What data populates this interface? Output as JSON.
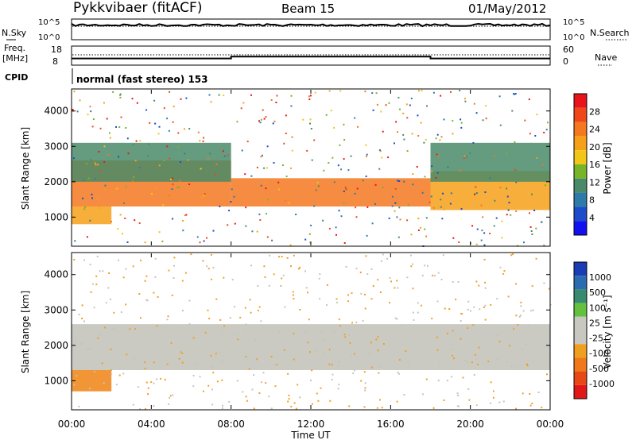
{
  "header": {
    "station": "Pykkvibaer (fitACF)",
    "beam": "Beam 15",
    "date": "01/May/2012"
  },
  "noise_panel": {
    "left_label": "N.Sky",
    "right_label": "N.Search",
    "left_ticks": [
      "10^5",
      "10^0"
    ],
    "right_ticks": [
      "10^5",
      "10^0"
    ]
  },
  "freq_panel": {
    "left_label_line1": "Freq.",
    "left_label_line2": "[MHz]",
    "right_label": "Nave",
    "left_ticks": [
      "18",
      "8"
    ],
    "right_ticks": [
      "60",
      "0"
    ],
    "cpid_label": "CPID",
    "cpid_text": "normal (fast stereo) 153"
  },
  "colorbars": {
    "power": {
      "label": "Power [dB]",
      "ticks": [
        "28",
        "24",
        "20",
        "16",
        "12",
        "8",
        "4"
      ],
      "colors": [
        "#e8141a",
        "#f0461c",
        "#f47820",
        "#f6a018",
        "#f2c618",
        "#78b428",
        "#4a8a68",
        "#2e7aa8",
        "#1c4cc8",
        "#1010f0"
      ]
    },
    "velocity": {
      "label": "Velocity [m s⁻¹]",
      "ticks": [
        "1000",
        "500",
        "100",
        "25",
        "-25",
        "-100",
        "-500",
        "-1000"
      ],
      "colors": [
        "#1a3cb4",
        "#2a6cb0",
        "#3a8a70",
        "#66c040",
        "#c8c8c0",
        "#c8c8c0",
        "#f0a020",
        "#f07818",
        "#e84818",
        "#e01818"
      ]
    }
  },
  "chart_data": [
    {
      "type": "heatmap",
      "title": "Power",
      "ylabel": "Slant Range [km]",
      "ylim": [
        200,
        4600
      ],
      "yticks": [
        "4000",
        "3000",
        "2000",
        "1000"
      ],
      "colorbar_label": "Power [dB]",
      "colorbar_range": [
        0,
        32
      ],
      "layers": [
        {
          "band": "main scatter",
          "start_hour": 0,
          "end_hour": 8,
          "range_km": [
            1300,
            2600
          ],
          "power_db": 24
        },
        {
          "band": "main scatter",
          "start_hour": 8,
          "end_hour": 18,
          "range_km": [
            1300,
            2100
          ],
          "power_db": 26
        },
        {
          "band": "main scatter",
          "start_hour": 18,
          "end_hour": 24,
          "range_km": [
            1200,
            2300
          ],
          "power_db": 22
        },
        {
          "band": "upper scatter",
          "start_hour": 0,
          "end_hour": 8,
          "range_km": [
            2000,
            3100
          ],
          "power_db": 10
        },
        {
          "band": "upper scatter",
          "start_hour": 18,
          "end_hour": 24,
          "range_km": [
            2000,
            3100
          ],
          "power_db": 12
        },
        {
          "band": "near range",
          "start_hour": 0,
          "end_hour": 2,
          "range_km": [
            800,
            1300
          ],
          "power_db": 22
        }
      ]
    },
    {
      "type": "heatmap",
      "title": "Velocity",
      "ylabel": "Slant Range [km]",
      "ylim": [
        200,
        4600
      ],
      "yticks": [
        "4000",
        "3000",
        "2000",
        "1000"
      ],
      "xlabel": "Time UT",
      "xticks": [
        "00:00",
        "04:00",
        "08:00",
        "12:00",
        "16:00",
        "20:00",
        "00:00"
      ],
      "colorbar_label": "Velocity [m s⁻¹]",
      "colorbar_range": [
        -1000,
        1000
      ],
      "layers": [
        {
          "band": "main scatter",
          "start_hour": 0,
          "end_hour": 24,
          "range_km": [
            1300,
            2600
          ],
          "velocity_ms": 0
        },
        {
          "band": "near range",
          "start_hour": 0,
          "end_hour": 2,
          "range_km": [
            700,
            1300
          ],
          "velocity_ms": -300
        }
      ]
    },
    {
      "type": "line",
      "title": "Frequency",
      "x_hours": [
        0,
        8,
        8,
        18,
        18,
        24
      ],
      "y_mhz": [
        11.5,
        11.5,
        12.5,
        12.5,
        11.5,
        11.5
      ],
      "ylim": [
        8,
        18
      ]
    }
  ],
  "time_axis": {
    "labels": [
      "00:00",
      "04:00",
      "08:00",
      "12:00",
      "16:00",
      "20:00",
      "00:00"
    ],
    "xlabel": "Time UT"
  }
}
